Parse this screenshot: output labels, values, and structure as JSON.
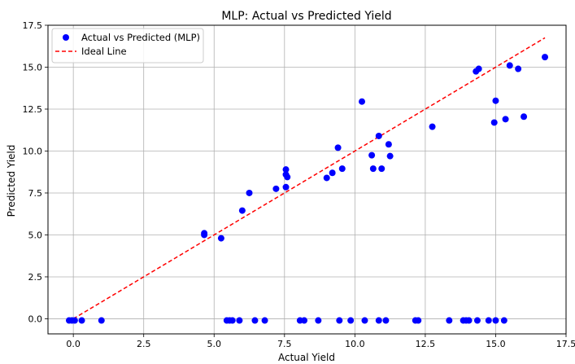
{
  "chart_data": {
    "type": "scatter",
    "title": "MLP: Actual vs Predicted Yield",
    "xlabel": "Actual Yield",
    "ylabel": "Predicted Yield",
    "xlim": [
      -0.9,
      17.5
    ],
    "ylim": [
      -0.9,
      17.5
    ],
    "xticks": [
      0.0,
      2.5,
      5.0,
      7.5,
      10.0,
      12.5,
      15.0,
      17.5
    ],
    "yticks": [
      0.0,
      2.5,
      5.0,
      7.5,
      10.0,
      12.5,
      15.0,
      17.5
    ],
    "grid": true,
    "legend_position": "top-left",
    "legend": [
      "Actual vs Predicted (MLP)",
      "Ideal Line"
    ],
    "colors": {
      "points": "#0000ff",
      "ideal_line": "#ff0000",
      "grid": "#b0b0b0"
    },
    "ideal_line": {
      "x": [
        0.0,
        16.75
      ],
      "y": [
        0.0,
        16.75
      ]
    },
    "points": [
      [
        -0.15,
        -0.1
      ],
      [
        -0.05,
        -0.1
      ],
      [
        0.05,
        -0.1
      ],
      [
        0.3,
        -0.1
      ],
      [
        1.0,
        -0.1
      ],
      [
        4.65,
        5.1
      ],
      [
        4.65,
        5.0
      ],
      [
        5.25,
        4.8
      ],
      [
        5.45,
        -0.1
      ],
      [
        5.55,
        -0.1
      ],
      [
        5.65,
        -0.1
      ],
      [
        5.9,
        -0.1
      ],
      [
        6.0,
        6.45
      ],
      [
        6.25,
        7.5
      ],
      [
        6.45,
        -0.1
      ],
      [
        6.8,
        -0.1
      ],
      [
        7.2,
        7.75
      ],
      [
        7.55,
        8.9
      ],
      [
        7.55,
        8.6
      ],
      [
        7.6,
        8.45
      ],
      [
        7.55,
        7.85
      ],
      [
        8.05,
        -0.1
      ],
      [
        8.2,
        -0.1
      ],
      [
        8.7,
        -0.1
      ],
      [
        9.0,
        8.4
      ],
      [
        9.2,
        8.7
      ],
      [
        9.4,
        10.2
      ],
      [
        9.45,
        -0.1
      ],
      [
        9.55,
        8.95
      ],
      [
        9.85,
        -0.1
      ],
      [
        10.25,
        12.95
      ],
      [
        10.35,
        -0.1
      ],
      [
        10.6,
        9.75
      ],
      [
        10.65,
        8.95
      ],
      [
        10.85,
        10.9
      ],
      [
        10.85,
        -0.1
      ],
      [
        10.95,
        8.95
      ],
      [
        11.1,
        -0.1
      ],
      [
        11.2,
        10.4
      ],
      [
        11.25,
        9.7
      ],
      [
        12.15,
        -0.1
      ],
      [
        12.25,
        -0.1
      ],
      [
        12.75,
        11.45
      ],
      [
        13.35,
        -0.1
      ],
      [
        13.85,
        -0.1
      ],
      [
        13.95,
        -0.1
      ],
      [
        14.05,
        -0.1
      ],
      [
        14.3,
        14.75
      ],
      [
        14.35,
        -0.1
      ],
      [
        14.4,
        14.9
      ],
      [
        14.75,
        -0.1
      ],
      [
        14.95,
        11.7
      ],
      [
        15.0,
        13.0
      ],
      [
        15.0,
        -0.1
      ],
      [
        15.3,
        -0.1
      ],
      [
        15.35,
        11.9
      ],
      [
        15.5,
        15.1
      ],
      [
        15.8,
        14.9
      ],
      [
        16.0,
        12.05
      ],
      [
        16.75,
        15.6
      ]
    ]
  }
}
